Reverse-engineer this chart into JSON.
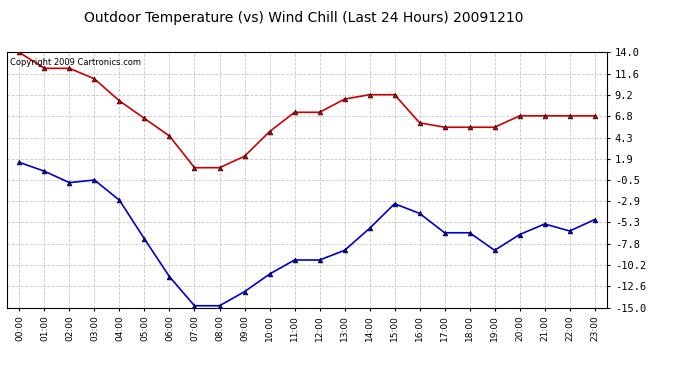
{
  "title": "Outdoor Temperature (vs) Wind Chill (Last 24 Hours) 20091210",
  "copyright_text": "Copyright 2009 Cartronics.com",
  "hours": [
    0,
    1,
    2,
    3,
    4,
    5,
    6,
    7,
    8,
    9,
    10,
    11,
    12,
    13,
    14,
    15,
    16,
    17,
    18,
    19,
    20,
    21,
    22,
    23
  ],
  "temp_red": [
    14.0,
    12.2,
    12.2,
    11.0,
    8.5,
    6.5,
    4.5,
    0.9,
    0.9,
    2.2,
    5.0,
    7.2,
    7.2,
    8.7,
    9.2,
    9.2,
    6.0,
    5.5,
    5.5,
    5.5,
    6.8,
    6.8,
    6.8,
    6.8
  ],
  "wind_chill_blue": [
    1.5,
    0.5,
    -0.8,
    -0.5,
    -2.8,
    -7.2,
    -11.5,
    -14.8,
    -14.8,
    -13.2,
    -11.2,
    -9.6,
    -9.6,
    -8.5,
    -6.0,
    -3.2,
    -4.3,
    -6.5,
    -6.5,
    -8.5,
    -6.7,
    -5.5,
    -6.3,
    -5.0
  ],
  "ylim": [
    -15.0,
    14.0
  ],
  "yticks": [
    14.0,
    11.6,
    9.2,
    6.8,
    4.3,
    1.9,
    -0.5,
    -2.9,
    -5.3,
    -7.8,
    -10.2,
    -12.6,
    -15.0
  ],
  "red_color": "#cc0000",
  "blue_color": "#0000cc",
  "grid_color": "#c8c8c8",
  "bg_color": "#ffffff",
  "marker": "^",
  "marker_size": 3.5,
  "title_fontsize": 10,
  "xlabel_fontsize": 7,
  "ylabel_fontsize": 8
}
